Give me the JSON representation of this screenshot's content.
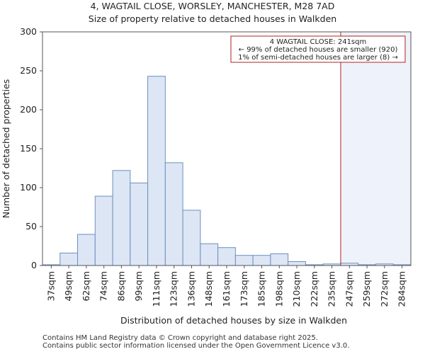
{
  "header": {
    "title_line1": "4, WAGTAIL CLOSE, WORSLEY, MANCHESTER, M28 7AD",
    "title_line2": "Size of property relative to detached houses in Walkden"
  },
  "footer": {
    "line1": "Contains HM Land Registry data © Crown copyright and database right 2025.",
    "line2": "Contains public sector information licensed under the Open Government Licence v3.0."
  },
  "chart_data": {
    "type": "bar",
    "title": "4, WAGTAIL CLOSE, WORSLEY, MANCHESTER, M28 7AD",
    "subtitle": "Size of property relative to detached houses in Walkden",
    "xlabel": "Distribution of detached houses by size in Walkden",
    "ylabel": "Number of detached properties",
    "categories": [
      "37sqm",
      "49sqm",
      "62sqm",
      "74sqm",
      "86sqm",
      "99sqm",
      "111sqm",
      "123sqm",
      "136sqm",
      "148sqm",
      "161sqm",
      "173sqm",
      "185sqm",
      "198sqm",
      "210sqm",
      "222sqm",
      "235sqm",
      "247sqm",
      "259sqm",
      "272sqm",
      "284sqm"
    ],
    "values": [
      1,
      16,
      40,
      89,
      122,
      106,
      243,
      132,
      71,
      28,
      23,
      13,
      13,
      15,
      5,
      1,
      2,
      3,
      1,
      2,
      1
    ],
    "ylim": [
      0,
      300
    ],
    "yticks": [
      0,
      50,
      100,
      150,
      200,
      250,
      300
    ],
    "marker": {
      "value_sqm": 241,
      "line1": "4 WAGTAIL CLOSE: 241sqm",
      "line2": "← 99% of detached houses are smaller (920)",
      "line3": "1% of semi-detached houses are larger (8) →"
    },
    "colors": {
      "bar_fill": "#dce6f5",
      "bar_edge": "#6e8fbf",
      "marker_line": "#b22222",
      "highlight_fill": "#eef2fa",
      "axes": "#555555"
    },
    "grid": false,
    "annotation_position": "top-right"
  }
}
